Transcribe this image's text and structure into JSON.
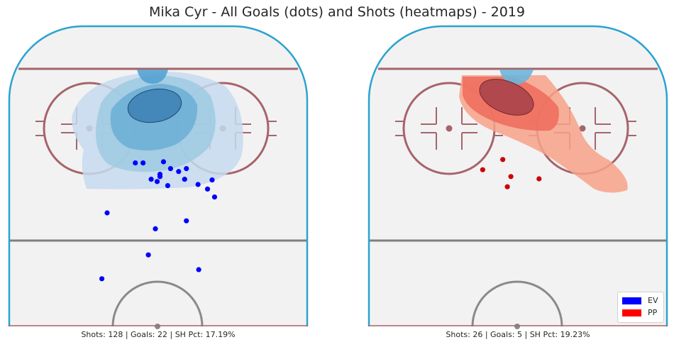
{
  "title": "Mika Cyr - All Goals (dots) and Shots (heatmaps) - 2019",
  "colors": {
    "rink_surface": "#f2f2f2",
    "rink_boards": "#2aa3cf",
    "goal_line": "#a6646b",
    "faceoff_circle": "#a6646b",
    "blue_line": "#7f7f7f",
    "center_circle": "#8a8a8a",
    "ev": "#0000ff",
    "pp": "#ff0000",
    "ev_heat": [
      "#c6dbef",
      "#9ecae1",
      "#6baed6",
      "#3c7fb4",
      "#2a5a8c"
    ],
    "pp_heat": [
      "#f7a289",
      "#ef6b5a",
      "#c7434b",
      "#9c3a45"
    ]
  },
  "chart_data": [
    {
      "type": "scatter",
      "panel": "ev",
      "caption": "Shots: 128 | Goals: 22 | SH Pct: 17.19%",
      "shots": 128,
      "goals": 22,
      "sh_pct": 17.19,
      "xlim": [
        -42.5,
        42.5
      ],
      "ylim": [
        0,
        100
      ],
      "goal_points": [
        {
          "x": -6.5,
          "y": 77.5
        },
        {
          "x": -4.3,
          "y": 77.5
        },
        {
          "x": 1.5,
          "y": 78.0
        },
        {
          "x": 3.5,
          "y": 75.0
        },
        {
          "x": 5.8,
          "y": 73.7
        },
        {
          "x": 8.0,
          "y": 75.0
        },
        {
          "x": 0.5,
          "y": 72.5
        },
        {
          "x": 0.5,
          "y": 71.5
        },
        {
          "x": 7.5,
          "y": 70.3
        },
        {
          "x": -2.0,
          "y": 70.3
        },
        {
          "x": -0.3,
          "y": 69.3
        },
        {
          "x": 2.7,
          "y": 67.5
        },
        {
          "x": 11.3,
          "y": 68.0
        },
        {
          "x": 15.3,
          "y": 70.0
        },
        {
          "x": 16.0,
          "y": 62.5
        },
        {
          "x": -14.5,
          "y": 55.5
        },
        {
          "x": 8.0,
          "y": 52.0
        },
        {
          "x": -0.8,
          "y": 48.5
        },
        {
          "x": -2.8,
          "y": 37.0
        },
        {
          "x": 11.5,
          "y": 30.5
        },
        {
          "x": -16.0,
          "y": 26.5
        },
        {
          "x": 14.0,
          "y": 66.0
        }
      ],
      "heatmap_levels": 5
    },
    {
      "type": "scatter",
      "panel": "pp",
      "caption": "Shots: 26 | Goals: 5 | SH Pct: 19.23%",
      "shots": 26,
      "goals": 5,
      "sh_pct": 19.23,
      "xlim": [
        -42.5,
        42.5
      ],
      "ylim": [
        0,
        100
      ],
      "goal_points": [
        {
          "x": -4.3,
          "y": 79.0
        },
        {
          "x": -10.0,
          "y": 74.5
        },
        {
          "x": -2.0,
          "y": 71.5
        },
        {
          "x": 6.0,
          "y": 70.5
        },
        {
          "x": -3.0,
          "y": 67.0
        }
      ],
      "heatmap_levels": 4
    }
  ],
  "legend": {
    "position": "lower-right",
    "items": [
      {
        "label": "EV",
        "color": "#0000ff"
      },
      {
        "label": "PP",
        "color": "#ff0000"
      }
    ]
  }
}
